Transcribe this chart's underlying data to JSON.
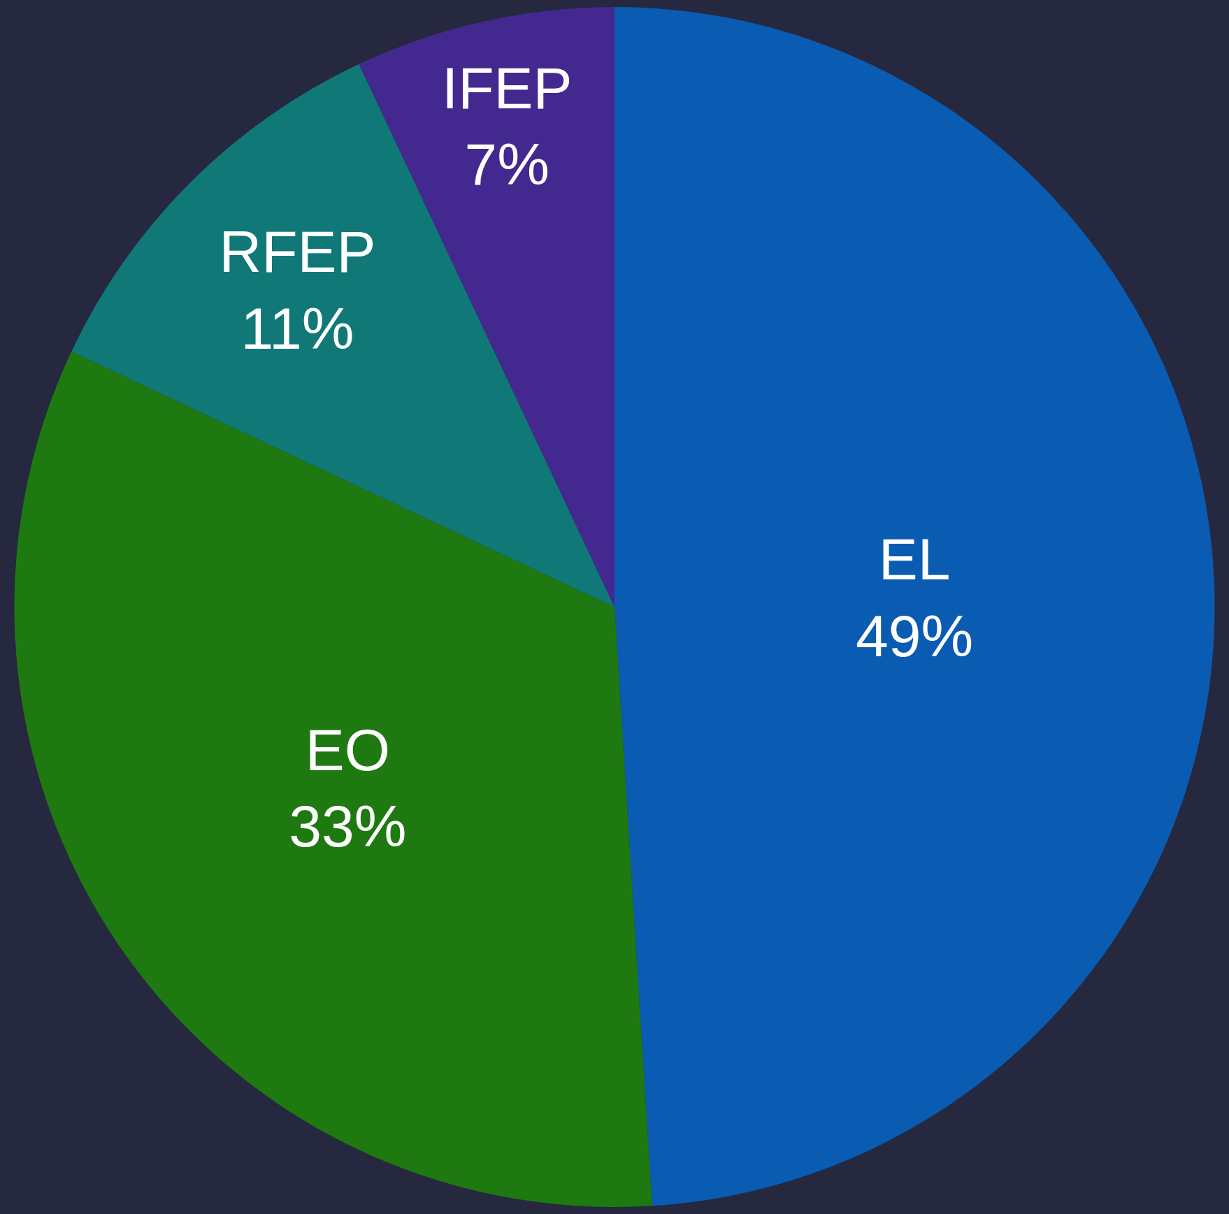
{
  "chart_data": {
    "type": "pie",
    "categories": [
      "EL",
      "EO",
      "RFEP",
      "IFEP"
    ],
    "values": [
      49,
      33,
      11,
      7
    ],
    "value_labels": [
      "49%",
      "33%",
      "11%",
      "7%"
    ],
    "colors": [
      "#0a5cb2",
      "#1e7a10",
      "#117878",
      "#43298f"
    ],
    "legend": false
  }
}
